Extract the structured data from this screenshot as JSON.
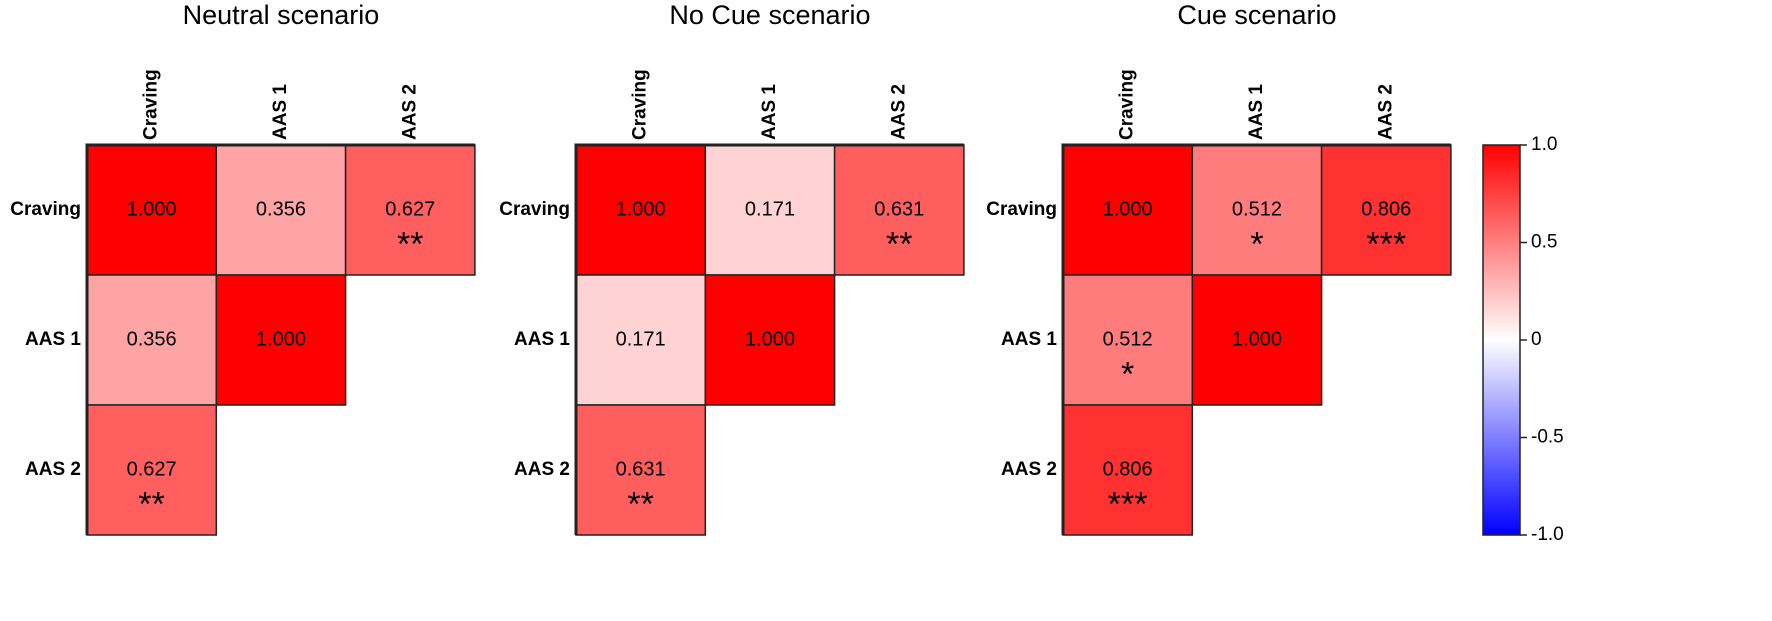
{
  "chart_data": [
    {
      "type": "heatmap",
      "title": "Neutral scenario",
      "x": [
        "Craving",
        "AAS 1",
        "AAS 2"
      ],
      "y": [
        "Craving",
        "AAS 1",
        "AAS 2"
      ],
      "values": [
        [
          1,
          0.356,
          0.627
        ],
        [
          0.356,
          1,
          null
        ],
        [
          0.627,
          null,
          null
        ]
      ],
      "value_labels": [
        [
          "1.000",
          "0.356",
          "0.627"
        ],
        [
          "0.356",
          "1.000",
          null
        ],
        [
          "0.627",
          null,
          null
        ]
      ],
      "annotations": [
        [
          null,
          null,
          "**"
        ],
        [
          null,
          null,
          null
        ],
        [
          "**",
          null,
          null
        ]
      ]
    },
    {
      "type": "heatmap",
      "title": "No Cue scenario",
      "x": [
        "Craving",
        "AAS 1",
        "AAS 2"
      ],
      "y": [
        "Craving",
        "AAS 1",
        "AAS 2"
      ],
      "values": [
        [
          1,
          0.171,
          0.631
        ],
        [
          0.171,
          1,
          null
        ],
        [
          0.631,
          null,
          null
        ]
      ],
      "value_labels": [
        [
          "1.000",
          "0.171",
          "0.631"
        ],
        [
          "0.171",
          "1.000",
          null
        ],
        [
          "0.631",
          null,
          null
        ]
      ],
      "annotations": [
        [
          null,
          null,
          "**"
        ],
        [
          null,
          null,
          null
        ],
        [
          "**",
          null,
          null
        ]
      ]
    },
    {
      "type": "heatmap",
      "title": "Cue scenario",
      "x": [
        "Craving",
        "AAS 1",
        "AAS 2"
      ],
      "y": [
        "Craving",
        "AAS 1",
        "AAS 2"
      ],
      "values": [
        [
          1,
          0.512,
          0.806
        ],
        [
          0.512,
          1,
          null
        ],
        [
          0.806,
          null,
          null
        ]
      ],
      "value_labels": [
        [
          "1.000",
          "0.512",
          "0.806"
        ],
        [
          "0.512",
          "1.000",
          null
        ],
        [
          "0.806",
          null,
          null
        ]
      ],
      "annotations": [
        [
          null,
          "*",
          "***"
        ],
        [
          "*",
          null,
          null
        ],
        [
          "***",
          null,
          null
        ]
      ]
    }
  ],
  "colorbar": {
    "zlim": [
      -1,
      1
    ],
    "colors": [
      "#0000ff",
      "#ffffff",
      "#ff0000"
    ],
    "zticks": [
      {
        "value": 1,
        "label": "1.0"
      },
      0.5,
      0,
      -0.5,
      {
        "value": -1,
        "label": "-1.0"
      }
    ]
  }
}
